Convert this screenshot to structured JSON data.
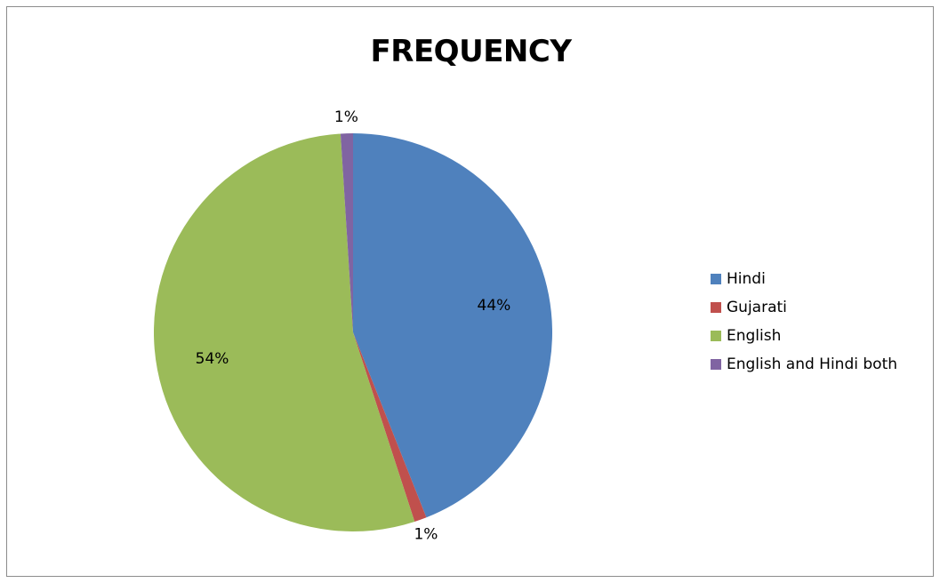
{
  "chart_data": {
    "type": "pie",
    "title": "FREQUENCY",
    "categories": [
      "Hindi",
      "Gujarati",
      "English",
      "English and Hindi both"
    ],
    "values": [
      44,
      1,
      54,
      1
    ],
    "data_labels": [
      "44%",
      "1%",
      "54%",
      "1%"
    ],
    "colors": [
      "#4f81bd",
      "#c0504d",
      "#9bbb59",
      "#8064a2"
    ],
    "legend_position": "right"
  }
}
